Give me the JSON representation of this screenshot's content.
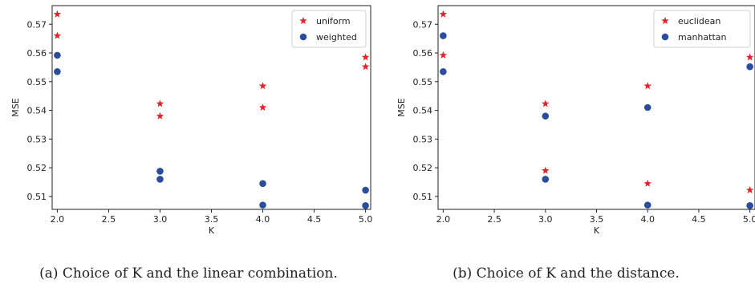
{
  "chart_data": [
    {
      "type": "scatter",
      "caption": "(a) Choice of K and the linear combination.",
      "xlabel": "K",
      "ylabel": "MSE",
      "xlim": [
        1.95,
        5.05
      ],
      "ylim": [
        0.5055,
        0.5765
      ],
      "xticks": [
        2.0,
        2.5,
        3.0,
        3.5,
        4.0,
        4.5,
        5.0
      ],
      "xtick_labels": [
        "2.0",
        "2.5",
        "3.0",
        "3.5",
        "4.0",
        "4.5",
        "5.0"
      ],
      "yticks": [
        0.51,
        0.52,
        0.53,
        0.54,
        0.55,
        0.56,
        0.57
      ],
      "ytick_labels": [
        "0.51",
        "0.52",
        "0.53",
        "0.54",
        "0.55",
        "0.56",
        "0.57"
      ],
      "grid": false,
      "legend_position": "top-right",
      "series": [
        {
          "name": "uniform",
          "marker": "star",
          "color": "#e8202a",
          "points": [
            [
              2,
              0.5735
            ],
            [
              2,
              0.566
            ],
            [
              3,
              0.5423
            ],
            [
              3,
              0.538
            ],
            [
              4,
              0.5485
            ],
            [
              4,
              0.541
            ],
            [
              5,
              0.5585
            ],
            [
              5,
              0.5552
            ]
          ]
        },
        {
          "name": "weighted",
          "marker": "circle",
          "color": "#2b4d9e",
          "points": [
            [
              2,
              0.5592
            ],
            [
              2,
              0.5535
            ],
            [
              3,
              0.5188
            ],
            [
              3,
              0.516
            ],
            [
              4,
              0.5145
            ],
            [
              4,
              0.507
            ],
            [
              5,
              0.5122
            ],
            [
              5,
              0.5068
            ]
          ]
        }
      ]
    },
    {
      "type": "scatter",
      "caption": "(b) Choice of K and the distance.",
      "xlabel": "K",
      "ylabel": "MSE",
      "xlim": [
        1.95,
        5.05
      ],
      "ylim": [
        0.5055,
        0.5765
      ],
      "xticks": [
        2.0,
        2.5,
        3.0,
        3.5,
        4.0,
        4.5,
        5.0
      ],
      "xtick_labels": [
        "2.0",
        "2.5",
        "3.0",
        "3.5",
        "4.0",
        "4.5",
        "5.0"
      ],
      "yticks": [
        0.51,
        0.52,
        0.53,
        0.54,
        0.55,
        0.56,
        0.57
      ],
      "ytick_labels": [
        "0.51",
        "0.52",
        "0.53",
        "0.54",
        "0.55",
        "0.56",
        "0.57"
      ],
      "grid": false,
      "legend_position": "top-right",
      "series": [
        {
          "name": "euclidean",
          "marker": "star",
          "color": "#e8202a",
          "points": [
            [
              2,
              0.5735
            ],
            [
              2,
              0.5592
            ],
            [
              3,
              0.5423
            ],
            [
              3,
              0.519
            ],
            [
              4,
              0.5485
            ],
            [
              4,
              0.5145
            ],
            [
              5,
              0.5585
            ],
            [
              5,
              0.5122
            ]
          ]
        },
        {
          "name": "manhattan",
          "marker": "circle",
          "color": "#2b4d9e",
          "points": [
            [
              2,
              0.566
            ],
            [
              2,
              0.5535
            ],
            [
              3,
              0.538
            ],
            [
              3,
              0.516
            ],
            [
              4,
              0.541
            ],
            [
              4,
              0.507
            ],
            [
              5,
              0.5552
            ],
            [
              5,
              0.5068
            ]
          ]
        }
      ]
    }
  ]
}
